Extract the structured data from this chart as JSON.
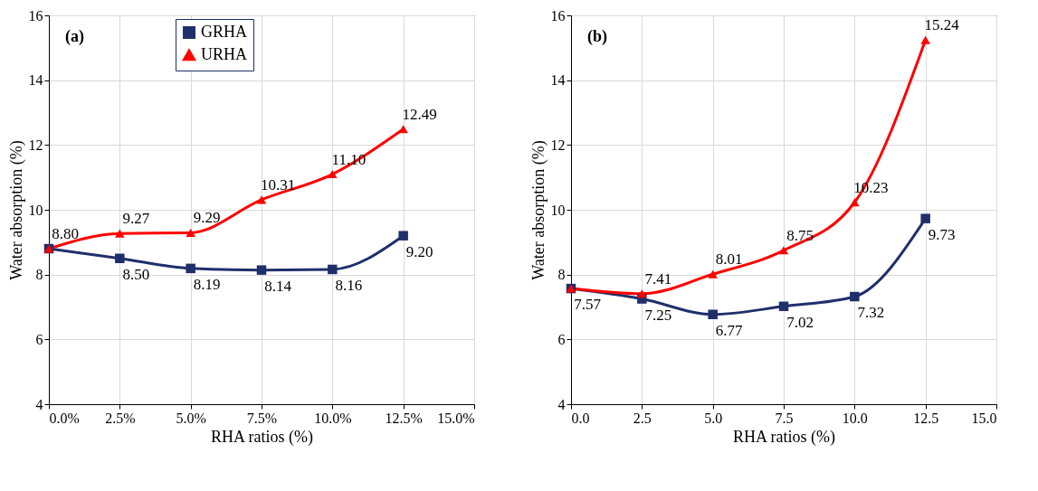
{
  "chart_data": [
    {
      "type": "line",
      "title": "(a)",
      "xlabel": "RHA ratios (%)",
      "ylabel": "Water absorption (%)",
      "x": [
        0,
        2.5,
        5,
        7.5,
        10,
        12.5
      ],
      "series": [
        {
          "name": "GRHA",
          "color": "#1f2f6b",
          "marker": "square",
          "values": [
            8.8,
            8.5,
            8.19,
            8.14,
            8.16,
            9.2
          ],
          "value_labels": [
            null,
            "8.50",
            "8.19",
            "8.14",
            "8.16",
            "9.20"
          ]
        },
        {
          "name": "URHA",
          "color": "#ff0000",
          "marker": "triangle",
          "values": [
            8.8,
            9.27,
            9.29,
            10.31,
            11.1,
            12.49
          ],
          "value_labels": [
            "8.80",
            "9.27",
            "9.29",
            "10.31",
            "11.10",
            "12.49"
          ]
        }
      ],
      "xlim": [
        0,
        15
      ],
      "ylim": [
        4,
        16
      ],
      "xticks": [
        {
          "value": 0,
          "label": "0.0%"
        },
        {
          "value": 2.5,
          "label": "2.5%"
        },
        {
          "value": 5,
          "label": "5.0%"
        },
        {
          "value": 7.5,
          "label": "7.5%"
        },
        {
          "value": 10,
          "label": "10.0%"
        },
        {
          "value": 12.5,
          "label": "12.5%"
        },
        {
          "value": 15,
          "label": "15.0%"
        }
      ],
      "yticks": [
        4,
        6,
        8,
        10,
        12,
        14,
        16
      ],
      "grid": true,
      "legend": "top",
      "line_style": "solid"
    },
    {
      "type": "line",
      "title": "(b)",
      "xlabel": "RHA ratios (%)",
      "ylabel": "Water absorption (%)",
      "x": [
        0,
        2.5,
        5,
        7.5,
        10,
        12.5
      ],
      "series": [
        {
          "name": "GRHA",
          "color": "#1f2f6b",
          "marker": "square",
          "values": [
            7.57,
            7.25,
            6.77,
            7.02,
            7.32,
            9.73
          ],
          "value_labels": [
            "7.57",
            "7.25",
            "6.77",
            "7.02",
            "7.32",
            "9.73"
          ]
        },
        {
          "name": "URHA",
          "color": "#ff0000",
          "marker": "triangle",
          "values": [
            7.57,
            7.41,
            8.01,
            8.75,
            10.23,
            15.24
          ],
          "value_labels": [
            null,
            "7.41",
            "8.01",
            "8.75",
            "10.23",
            "15.24"
          ]
        }
      ],
      "xlim": [
        0,
        15
      ],
      "ylim": [
        4,
        16
      ],
      "xticks": [
        {
          "value": 0,
          "label": "0.0"
        },
        {
          "value": 2.5,
          "label": "2.5"
        },
        {
          "value": 5,
          "label": "5.0"
        },
        {
          "value": 7.5,
          "label": "7.5"
        },
        {
          "value": 10,
          "label": "10.0"
        },
        {
          "value": 12.5,
          "label": "12.5"
        },
        {
          "value": 15,
          "label": "15.0"
        }
      ],
      "yticks": [
        4,
        6,
        8,
        10,
        12,
        14,
        16
      ],
      "grid": true,
      "legend": "top",
      "line_style": "solid"
    }
  ]
}
